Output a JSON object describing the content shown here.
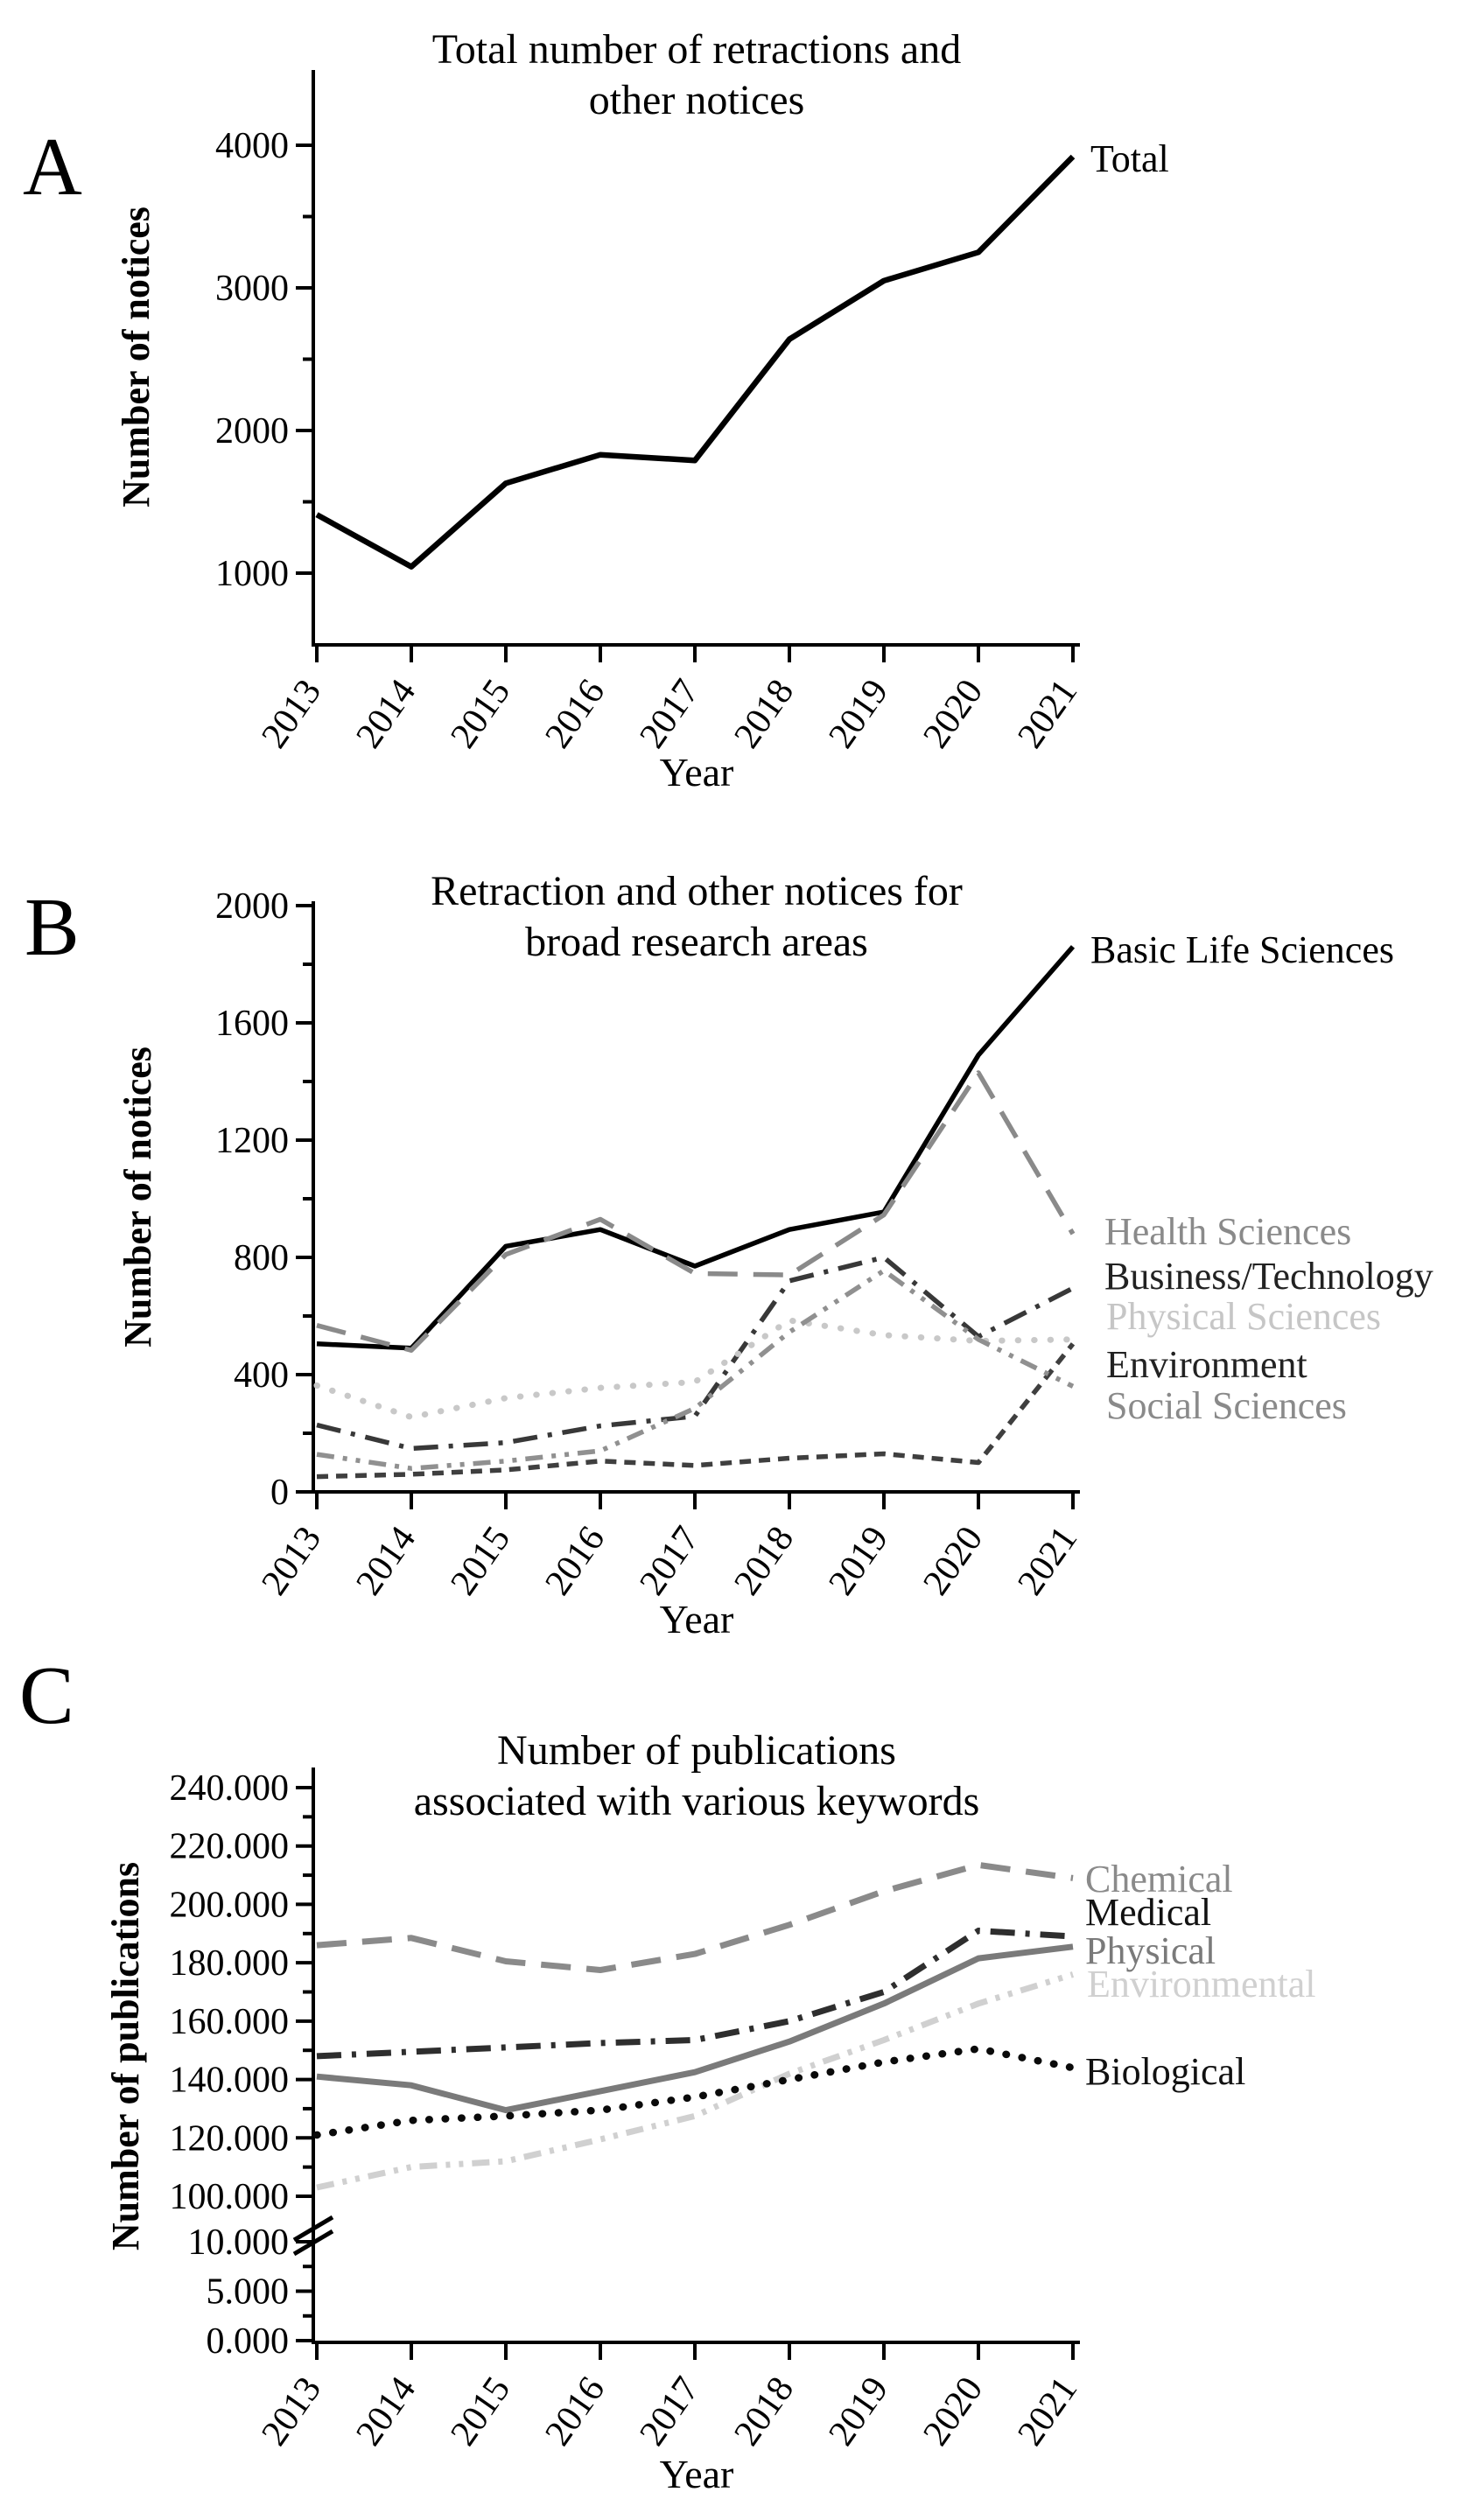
{
  "page": {
    "background": "#ffffff",
    "figure_type": "three-panel line chart figure"
  },
  "chart_data": [
    {
      "panel_letter": "A",
      "type": "line",
      "title_lines": [
        "Total number of retractions and",
        "other notices"
      ],
      "ylabel": "Number of notices",
      "xlabel": "Year",
      "x_tick_labels": [
        "2013",
        "2014",
        "2015",
        "2016",
        "2017",
        "2018",
        "2019",
        "2020",
        "2021"
      ],
      "ylim": [
        500,
        4500
      ],
      "grid": false,
      "legend_position": "line-end-labels-right",
      "y_ticks": [
        {
          "label": "1000",
          "value": 1000
        },
        {
          "label": "2000",
          "value": 2000
        },
        {
          "label": "3000",
          "value": 3000
        },
        {
          "label": "4000",
          "value": 4000
        }
      ],
      "series": [
        {
          "name": "Total",
          "style": "solid",
          "color": "#000000",
          "label_color": "#000000",
          "values": [
            1410,
            1045,
            1630,
            1830,
            1790,
            2640,
            3050,
            3250,
            3920
          ]
        }
      ]
    },
    {
      "panel_letter": "B",
      "type": "line",
      "title_lines": [
        "Retraction and other notices for",
        "broad research areas"
      ],
      "ylabel": "Number of notices",
      "xlabel": "Year",
      "x_tick_labels": [
        "2013",
        "2014",
        "2015",
        "2016",
        "2017",
        "2018",
        "2019",
        "2020",
        "2021"
      ],
      "ylim": [
        0,
        2000
      ],
      "grid": false,
      "legend_position": "line-end-labels-right",
      "y_ticks": [
        {
          "label": "0",
          "value": 0
        },
        {
          "label": "400",
          "value": 400
        },
        {
          "label": "800",
          "value": 800
        },
        {
          "label": "1200",
          "value": 1200
        },
        {
          "label": "1600",
          "value": 1600
        },
        {
          "label": "2000",
          "value": 2000
        }
      ],
      "series": [
        {
          "name": "Basic Life Sciences",
          "style": "solid",
          "color": "#000000",
          "label_color": "#000000",
          "values": [
            505,
            490,
            838,
            895,
            770,
            895,
            955,
            1490,
            1860
          ]
        },
        {
          "name": "Health Sciences",
          "style": "long-dash",
          "color": "#8a8a8a",
          "label_color": "#8a8a8a",
          "values": [
            568,
            483,
            810,
            930,
            745,
            740,
            945,
            1430,
            880
          ]
        },
        {
          "name": "Business/Technology",
          "style": "dash-dot",
          "color": "#383838",
          "label_color": "#222222",
          "values": [
            228,
            148,
            168,
            225,
            258,
            720,
            800,
            530,
            695
          ]
        },
        {
          "name": "Physical Sciences",
          "style": "dot",
          "color": "#c8c8c8",
          "label_color": "#c6c6c6",
          "values": [
            363,
            255,
            320,
            355,
            375,
            585,
            535,
            515,
            520
          ]
        },
        {
          "name": "Environment",
          "style": "short-dash",
          "color": "#3f3f3f",
          "label_color": "#222222",
          "values": [
            52,
            60,
            75,
            105,
            90,
            115,
            130,
            100,
            505
          ]
        },
        {
          "name": "Social Sciences",
          "style": "dash-dot-dot",
          "color": "#909090",
          "label_color": "#8a8a8a",
          "values": [
            128,
            80,
            105,
            140,
            285,
            545,
            755,
            520,
            360
          ]
        }
      ]
    },
    {
      "panel_letter": "C",
      "type": "line",
      "title_lines": [
        "Number of publications",
        "associated with various keywords"
      ],
      "ylabel": "Number of publications",
      "xlabel": "Year",
      "x_tick_labels": [
        "2013",
        "2014",
        "2015",
        "2016",
        "2017",
        "2018",
        "2019",
        "2020",
        "2021"
      ],
      "values_unit": "thousands (axis labels use dot as thousands separator)",
      "axis_break": {
        "between": [
          10,
          100
        ]
      },
      "grid": false,
      "legend_position": "line-end-labels-right",
      "y_ticks": [
        {
          "label": "0.000",
          "value": 0
        },
        {
          "label": "5.000",
          "value": 5
        },
        {
          "label": "10.000",
          "value": 10
        },
        {
          "label": "100.000",
          "value": 100
        },
        {
          "label": "120.000",
          "value": 120
        },
        {
          "label": "140.000",
          "value": 140
        },
        {
          "label": "160.000",
          "value": 160
        },
        {
          "label": "180.000",
          "value": 180
        },
        {
          "label": "200.000",
          "value": 200
        },
        {
          "label": "220.000",
          "value": 220
        },
        {
          "label": "240.000",
          "value": 240
        }
      ],
      "series": [
        {
          "name": "Chemical",
          "style": "long-dash",
          "color": "#8a8a8a",
          "label_color": "#8a8a8a",
          "values": [
            186,
            188.5,
            180.5,
            177.5,
            183,
            193,
            204.5,
            213.5,
            209
          ]
        },
        {
          "name": "Medical",
          "style": "dash-dot",
          "color": "#2e2e2e",
          "label_color": "#111111",
          "values": [
            148,
            149.5,
            151,
            152.5,
            153.5,
            160,
            170,
            191,
            189
          ]
        },
        {
          "name": "Physical",
          "style": "solid",
          "color": "#7a7a7a",
          "label_color": "#7a7a7a",
          "values": [
            141,
            138,
            129.5,
            136,
            142.5,
            153,
            166,
            181.5,
            185.5
          ]
        },
        {
          "name": "Environmental",
          "style": "dash-dot-dot",
          "color": "#d0d0d0",
          "label_color": "#d0d0d0",
          "values": [
            103,
            110,
            112,
            119.5,
            127.5,
            142,
            153.5,
            166,
            176
          ]
        },
        {
          "name": "Biological",
          "style": "dot",
          "color": "#0a0a0a",
          "label_color": "#111111",
          "values": [
            121,
            126,
            127.5,
            129.5,
            134,
            140,
            146,
            150.5,
            144
          ]
        }
      ]
    }
  ]
}
